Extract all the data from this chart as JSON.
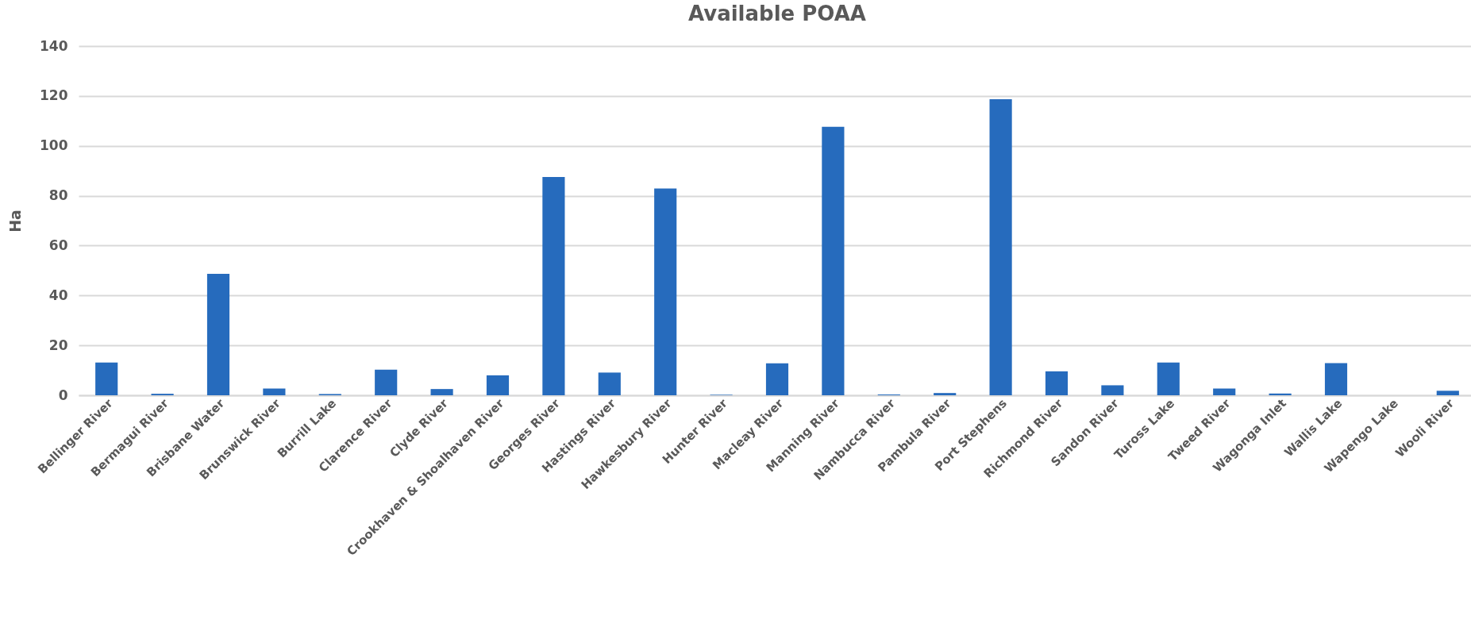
{
  "chart_data": {
    "type": "bar",
    "title": "Available POAA",
    "ylabel": "Ha",
    "categories": [
      "Bellinger River",
      "Bermagui River",
      "Brisbane Water",
      "Brunswick River",
      "Burrill Lake",
      "Clarence River",
      "Clyde River",
      "Crookhaven & Shoalhaven River",
      "Georges River",
      "Hastings River",
      "Hawkesbury River",
      "Hunter River",
      "Macleay River",
      "Manning River",
      "Nambucca River",
      "Pambula River",
      "Port Stephens",
      "Richmond River",
      "Sandon River",
      "Tuross Lake",
      "Tweed River",
      "Wagonga Inlet",
      "Wallis Lake",
      "Wapengo Lake",
      "Wooli River"
    ],
    "values": [
      13.1,
      0.6,
      48.7,
      2.7,
      0.5,
      10.3,
      2.5,
      8.0,
      87.5,
      9.1,
      82.9,
      0.2,
      12.8,
      107.6,
      0.3,
      0.9,
      118.7,
      9.6,
      4.0,
      13.1,
      2.7,
      0.7,
      12.9,
      0,
      1.8
    ],
    "color": "#266bbd",
    "ylim": [
      0,
      140
    ],
    "yticks": [
      0,
      20,
      40,
      60,
      80,
      100,
      120,
      140
    ],
    "grid": "y"
  }
}
